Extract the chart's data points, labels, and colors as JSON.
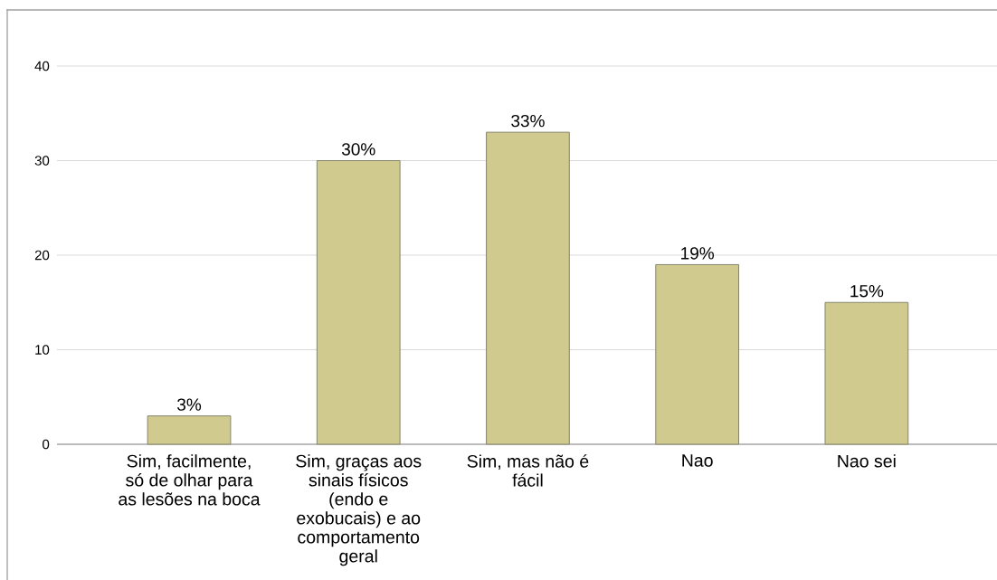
{
  "chart_data": {
    "type": "bar",
    "categories": [
      "Sim, facilmente, só de olhar para as lesões na boca",
      "Sim, graças aos sinais físicos (endo e exobucais) e ao comportamento geral",
      "Sim, mas não é fácil",
      "Nao",
      "Nao sei"
    ],
    "values": [
      3,
      30,
      33,
      19,
      15
    ],
    "value_labels": [
      "3%",
      "30%",
      "33%",
      "19%",
      "15%"
    ],
    "color": "#d0ca8e",
    "ylim": [
      0,
      40
    ],
    "yticks": [
      0,
      10,
      20,
      30,
      40
    ],
    "grid": "y"
  }
}
